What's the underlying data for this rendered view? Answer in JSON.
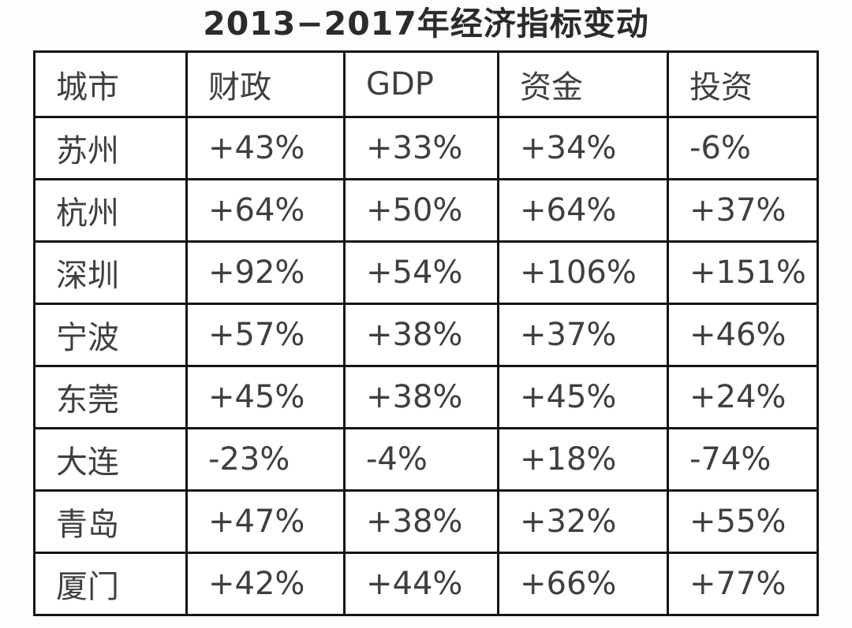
{
  "title": "2013−2017年经济指标变动",
  "colors": {
    "default_text": "#3f3f3f",
    "highlight_teal": "#1b7fa0",
    "negative_red": "#e0564c",
    "border": "#141414",
    "cell_background": "#ffffff"
  },
  "table": {
    "columns": [
      "城市",
      "财政",
      "GDP",
      "资金",
      "投资"
    ],
    "rows": [
      {
        "city": "苏州",
        "values": [
          "+43%",
          "+33%",
          "+34%",
          "-6%"
        ],
        "value_colors": [
          "default",
          "default",
          "default",
          "negative"
        ]
      },
      {
        "city": "杭州",
        "values": [
          "+64%",
          "+50%",
          "+64%",
          "+37%"
        ],
        "value_colors": [
          "default",
          "default",
          "default",
          "default"
        ]
      },
      {
        "city": "深圳",
        "values": [
          "+92%",
          "+54%",
          "+106%",
          "+151%"
        ],
        "value_colors": [
          "highlight",
          "highlight",
          "highlight",
          "highlight"
        ]
      },
      {
        "city": "宁波",
        "values": [
          "+57%",
          "+38%",
          "+37%",
          "+46%"
        ],
        "value_colors": [
          "default",
          "default",
          "default",
          "default"
        ]
      },
      {
        "city": "东莞",
        "values": [
          "+45%",
          "+38%",
          "+45%",
          "+24%"
        ],
        "value_colors": [
          "default",
          "default",
          "default",
          "default"
        ]
      },
      {
        "city": "大连",
        "values": [
          "-23%",
          "-4%",
          "+18%",
          "-74%"
        ],
        "value_colors": [
          "negative",
          "negative",
          "negative",
          "negative"
        ]
      },
      {
        "city": "青岛",
        "values": [
          "+47%",
          "+38%",
          "+32%",
          "+55%"
        ],
        "value_colors": [
          "default",
          "default",
          "default",
          "default"
        ]
      },
      {
        "city": "厦门",
        "values": [
          "+42%",
          "+44%",
          "+66%",
          "+77%"
        ],
        "value_colors": [
          "default",
          "default",
          "default",
          "default"
        ]
      }
    ]
  },
  "chart_data": {
    "type": "table",
    "title": "2013−2017年经济指标变动",
    "categories": [
      "苏州",
      "杭州",
      "深圳",
      "宁波",
      "东莞",
      "大连",
      "青岛",
      "厦门"
    ],
    "series": [
      {
        "name": "财政",
        "values": [
          "+43%",
          "+64%",
          "+92%",
          "+57%",
          "+45%",
          "-23%",
          "+47%",
          "+42%"
        ]
      },
      {
        "name": "GDP",
        "values": [
          "+33%",
          "+50%",
          "+54%",
          "+38%",
          "+38%",
          "-4%",
          "+38%",
          "+44%"
        ]
      },
      {
        "name": "资金",
        "values": [
          "+34%",
          "+64%",
          "+106%",
          "+37%",
          "+45%",
          "+18%",
          "+32%",
          "+66%"
        ]
      },
      {
        "name": "投资",
        "values": [
          "-6%",
          "+37%",
          "+151%",
          "+46%",
          "+24%",
          "-74%",
          "+55%",
          "+77%"
        ]
      }
    ],
    "notes": "深圳 row rendered in teal highlight; 大连 row and 苏州 投资 cell rendered in red."
  }
}
